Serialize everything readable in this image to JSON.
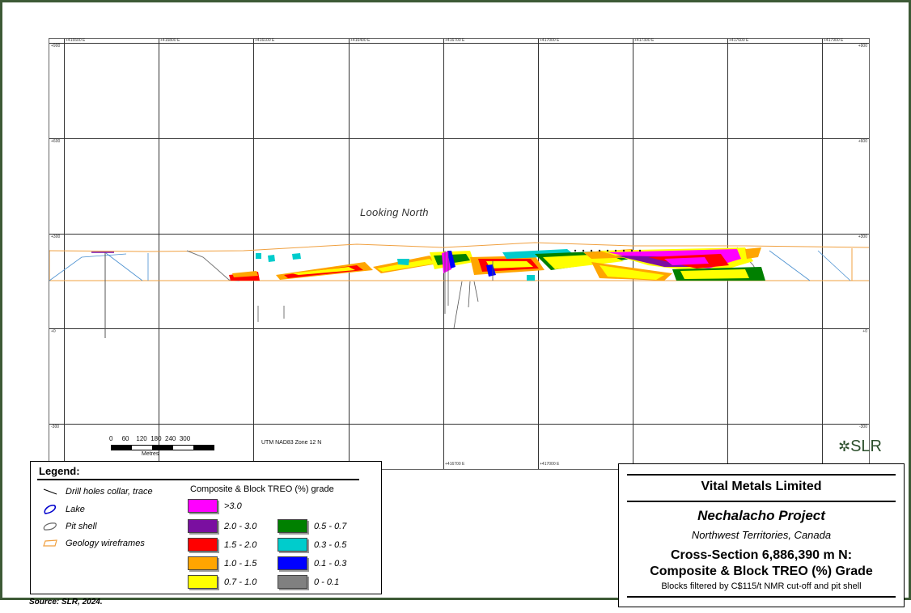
{
  "figure": {
    "looking": "Looking North",
    "easting_top": [
      "+415500 E",
      "+415800 E",
      "+416100 E",
      "+416400 E",
      "+416700 E",
      "+417000 E",
      "+417300 E",
      "+417600 E",
      "+417900 E"
    ],
    "easting_bottom": [
      "+416700 E",
      "+417000 E"
    ],
    "elevations": [
      "+900",
      "+600",
      "+300",
      "+0",
      "-300"
    ],
    "utm": "UTM NAD83 Zone 12 N",
    "scale": {
      "ticks": [
        "0",
        "60",
        "120",
        "180",
        "240",
        "300"
      ],
      "unit": "Metres"
    }
  },
  "legend": {
    "title": "Legend:",
    "items": [
      {
        "label": "Drill holes collar, trace",
        "icon": "drill-hole-line",
        "color": "#000000"
      },
      {
        "label": "Lake",
        "icon": "lake-outline",
        "color": "#0000cc"
      },
      {
        "label": "Pit shell",
        "icon": "pit-shell-outline",
        "color": "#666666"
      },
      {
        "label": "Geology wireframes",
        "icon": "geology-wireframe-outline",
        "color": "#f0a040"
      }
    ],
    "grade_title": "Composite & Block TREO (%) grade",
    "grades": [
      {
        "label": ">3.0",
        "color": "#ff00ff"
      },
      {
        "label": "2.0 - 3.0",
        "color": "#7a0fa0"
      },
      {
        "label": "1.5 - 2.0",
        "color": "#ff0000"
      },
      {
        "label": "1.0 - 1.5",
        "color": "#ffa500"
      },
      {
        "label": "0.7 - 1.0",
        "color": "#ffff00"
      },
      {
        "label": "0.5 - 0.7",
        "color": "#008000"
      },
      {
        "label": "0.3 - 0.5",
        "color": "#00cccc"
      },
      {
        "label": "0.1 - 0.3",
        "color": "#0000ff"
      },
      {
        "label": "0 - 0.1",
        "color": "#808080"
      }
    ]
  },
  "titlebox": {
    "company": "Vital Metals Limited",
    "project": "Nechalacho Project",
    "location": "Northwest Territories, Canada",
    "section1": "Cross-Section 6,886,390 m N:",
    "section2": "Composite & Block TREO (%) Grade",
    "note": "Blocks filtered by C$115/t NMR cut-off and pit shell"
  },
  "logo": "SLR",
  "source": "Source:  SLR, 2024."
}
